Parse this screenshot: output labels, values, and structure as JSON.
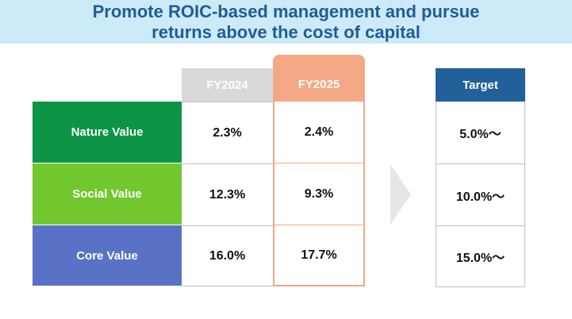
{
  "title": {
    "line1": "Promote ROIC-based management and pursue",
    "line2": "returns above the cost of capital"
  },
  "columns": {
    "fy2024": "FY2024",
    "fy2025": "FY2025",
    "target": "Target"
  },
  "rows": [
    {
      "label": "Nature Value",
      "fy2024": "2.3%",
      "fy2025": "2.4%",
      "target": "5.0%～"
    },
    {
      "label": "Social Value",
      "fy2024": "12.3%",
      "fy2025": "9.3%",
      "target": "10.0%～"
    },
    {
      "label": "Core Value",
      "fy2024": "16.0%",
      "fy2025": "17.7%",
      "target": "15.0%～"
    }
  ],
  "colors": {
    "title_band": "#cdeaf8",
    "title_text": "#1f5d97",
    "nature": "#0e9447",
    "social": "#72c62e",
    "core": "#5a72c5",
    "fy2024_header": "#d9d9d9",
    "fy2025_accent": "#f4a886",
    "target_header": "#235f9a",
    "arrow": "#e6e6e6"
  },
  "icons": {
    "transition_arrow": "chevron-right-arrow-icon"
  }
}
